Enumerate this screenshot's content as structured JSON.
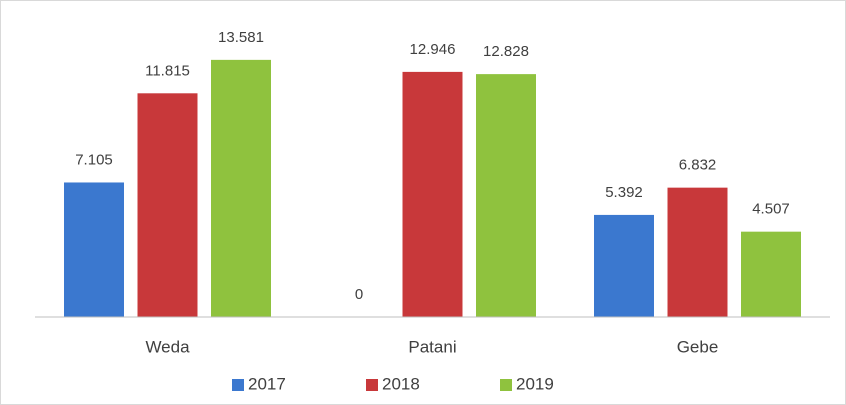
{
  "chart_data": {
    "type": "bar",
    "categories": [
      "Weda",
      "Patani",
      "Gebe"
    ],
    "series": [
      {
        "name": "2017",
        "color": "#3b78cf",
        "values": [
          7.105,
          0,
          5.392
        ]
      },
      {
        "name": "2018",
        "color": "#c8383a",
        "values": [
          11.815,
          12.946,
          6.832
        ]
      },
      {
        "name": "2019",
        "color": "#8fc23e",
        "values": [
          13.581,
          12.828,
          4.507
        ]
      }
    ],
    "ylim": [
      0,
      15
    ],
    "legend": "bottom"
  }
}
